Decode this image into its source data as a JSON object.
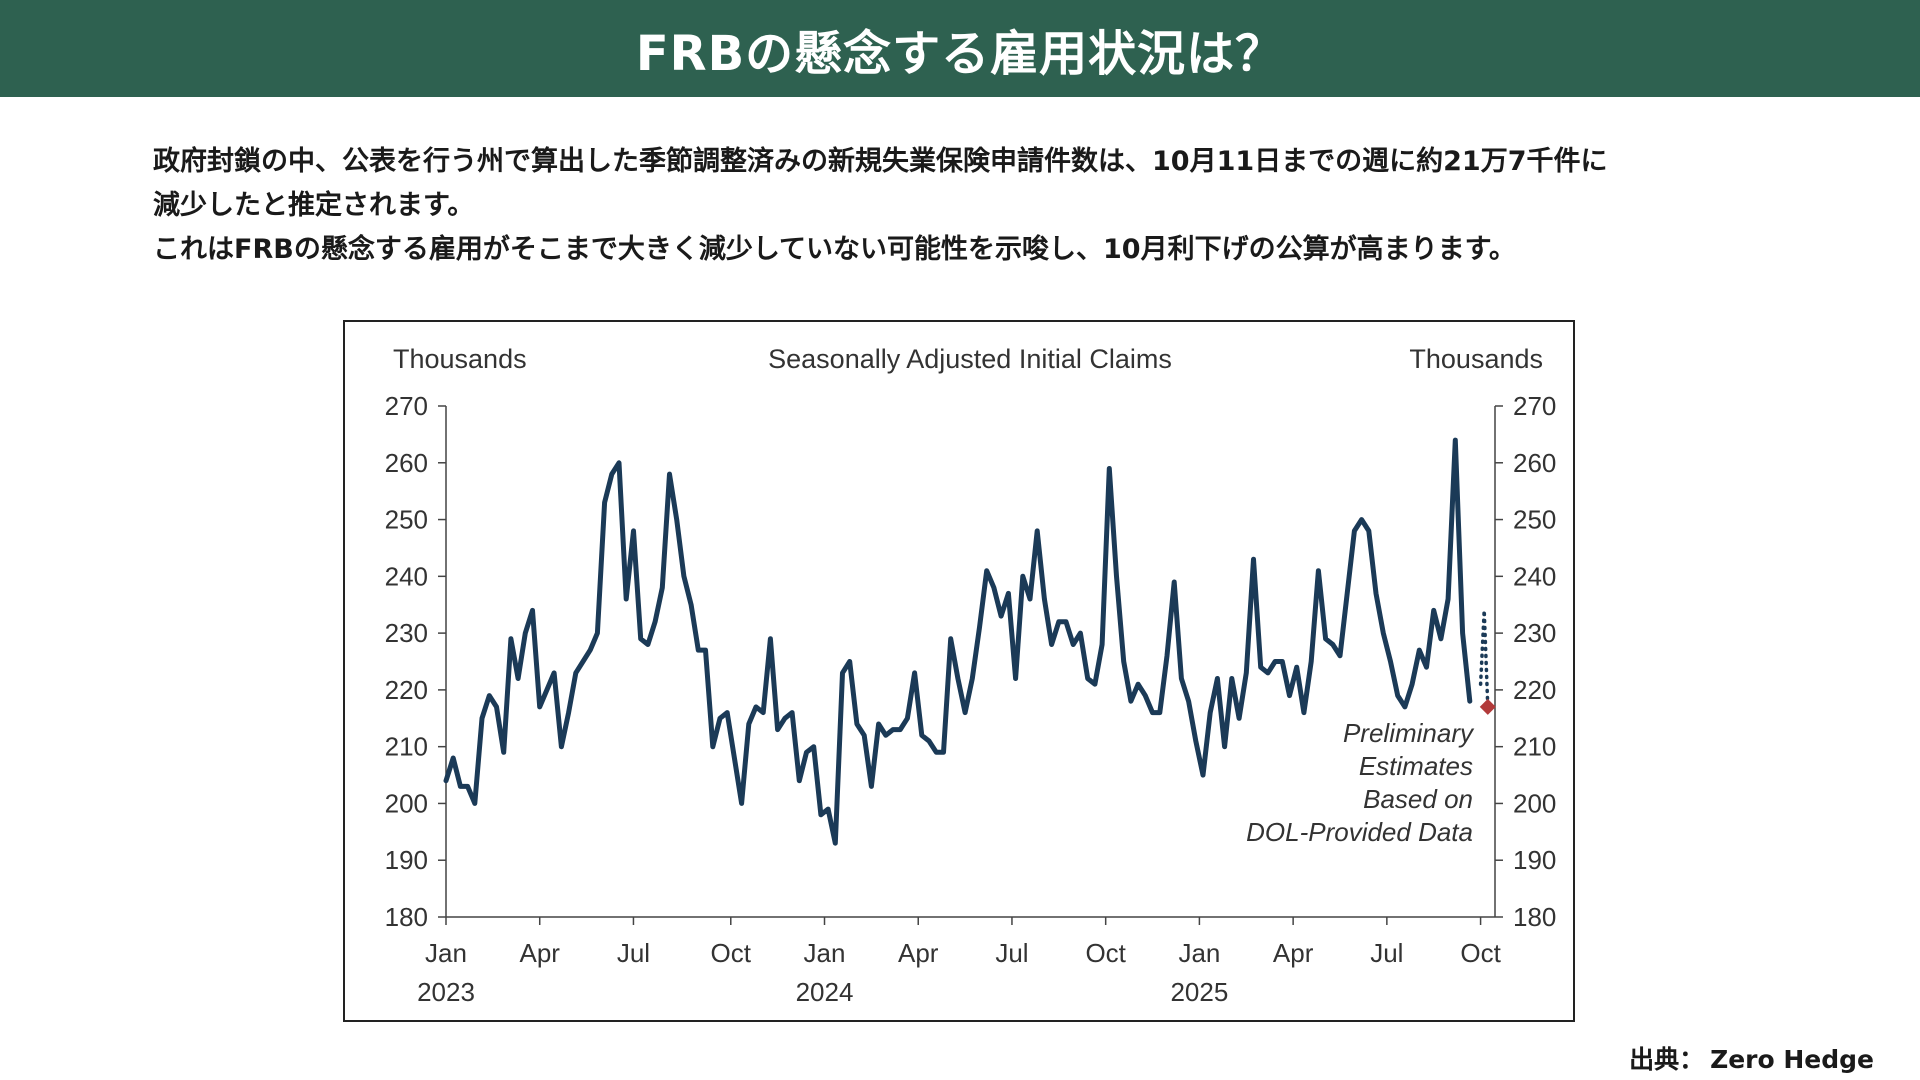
{
  "header": {
    "title": "FRBの懸念する雇用状況は？"
  },
  "body": {
    "paragraph_1_line_1": "政府封鎖の中、公表を行う州で算出した季節調整済みの新規失業保険申請件数は、10月11日までの週に約21万7千件に",
    "paragraph_1_line_2": "減少したと推定されます。",
    "paragraph_2": "これはFRBの懸念する雇用がそこまで大きく減少していない可能性を示唆し、10月利下げの公算が高まります。"
  },
  "footer": {
    "source_label": "出典：",
    "source_name": "Zero Hedge"
  },
  "colors": {
    "header_bg": "#2e6150",
    "line": "#1b3a57",
    "dotted": "#1b3a57",
    "marker": "#b23a3a"
  },
  "chart_data": {
    "type": "line",
    "title": "Seasonally Adjusted Initial Claims",
    "ylabel_left": "Thousands",
    "ylabel_right": "Thousands",
    "ylim": [
      180,
      270
    ],
    "yticks": [
      180,
      190,
      200,
      210,
      220,
      230,
      240,
      250,
      260,
      270
    ],
    "x_month_ticks": [
      {
        "label": "Jan",
        "year": "2023",
        "week": 0
      },
      {
        "label": "Apr",
        "year": "",
        "week": 13
      },
      {
        "label": "Jul",
        "year": "",
        "week": 26
      },
      {
        "label": "Oct",
        "year": "",
        "week": 39.5
      },
      {
        "label": "Jan",
        "year": "2024",
        "week": 52.5
      },
      {
        "label": "Apr",
        "year": "",
        "week": 65.5
      },
      {
        "label": "Jul",
        "year": "",
        "week": 78.5
      },
      {
        "label": "Oct",
        "year": "",
        "week": 91.5
      },
      {
        "label": "Jan",
        "year": "2025",
        "week": 104.5
      },
      {
        "label": "Apr",
        "year": "",
        "week": 117.5
      },
      {
        "label": "Jul",
        "year": "",
        "week": 130.5
      },
      {
        "label": "Oct",
        "year": "",
        "week": 143.5
      }
    ],
    "series": [
      {
        "name": "Initial claims (weekly)",
        "start_week": 0,
        "values": [
          204,
          208,
          203,
          203,
          200,
          215,
          219,
          217,
          209,
          229,
          222,
          230,
          234,
          217,
          220,
          223,
          210,
          216,
          223,
          225,
          227,
          230,
          253,
          258,
          260,
          236,
          248,
          229,
          228,
          232,
          238,
          258,
          250,
          240,
          235,
          227,
          227,
          210,
          215,
          216,
          208,
          200,
          214,
          217,
          216,
          229,
          213,
          215,
          216,
          204,
          209,
          210,
          198,
          199,
          193,
          223,
          225,
          214,
          212,
          203,
          214,
          212,
          213,
          213,
          215,
          223,
          212,
          211,
          209,
          209,
          229,
          222,
          216,
          222,
          231,
          241,
          238,
          233,
          237,
          222,
          240,
          236,
          248,
          236,
          228,
          232,
          232,
          228,
          230,
          222,
          221,
          228,
          259,
          240,
          225,
          218,
          221,
          219,
          216,
          216,
          226,
          239,
          222,
          218,
          211,
          205,
          216,
          222,
          210,
          222,
          215,
          223,
          243,
          224,
          223,
          225,
          225,
          219,
          224,
          216,
          225,
          241,
          229,
          228,
          226,
          237,
          248,
          250,
          248,
          237,
          230,
          225,
          219,
          217,
          221,
          227,
          224,
          234,
          229,
          236,
          264,
          230,
          218
        ]
      },
      {
        "name": "Preliminary estimates (dotted range)",
        "start_week": 143.5,
        "values": [
          221,
          234,
          217
        ]
      }
    ],
    "estimate_point": {
      "week": 144.5,
      "value": 217
    },
    "annotation_lines": [
      "Preliminary",
      "Estimates",
      "Based on",
      "DOL-Provided  Data"
    ]
  }
}
